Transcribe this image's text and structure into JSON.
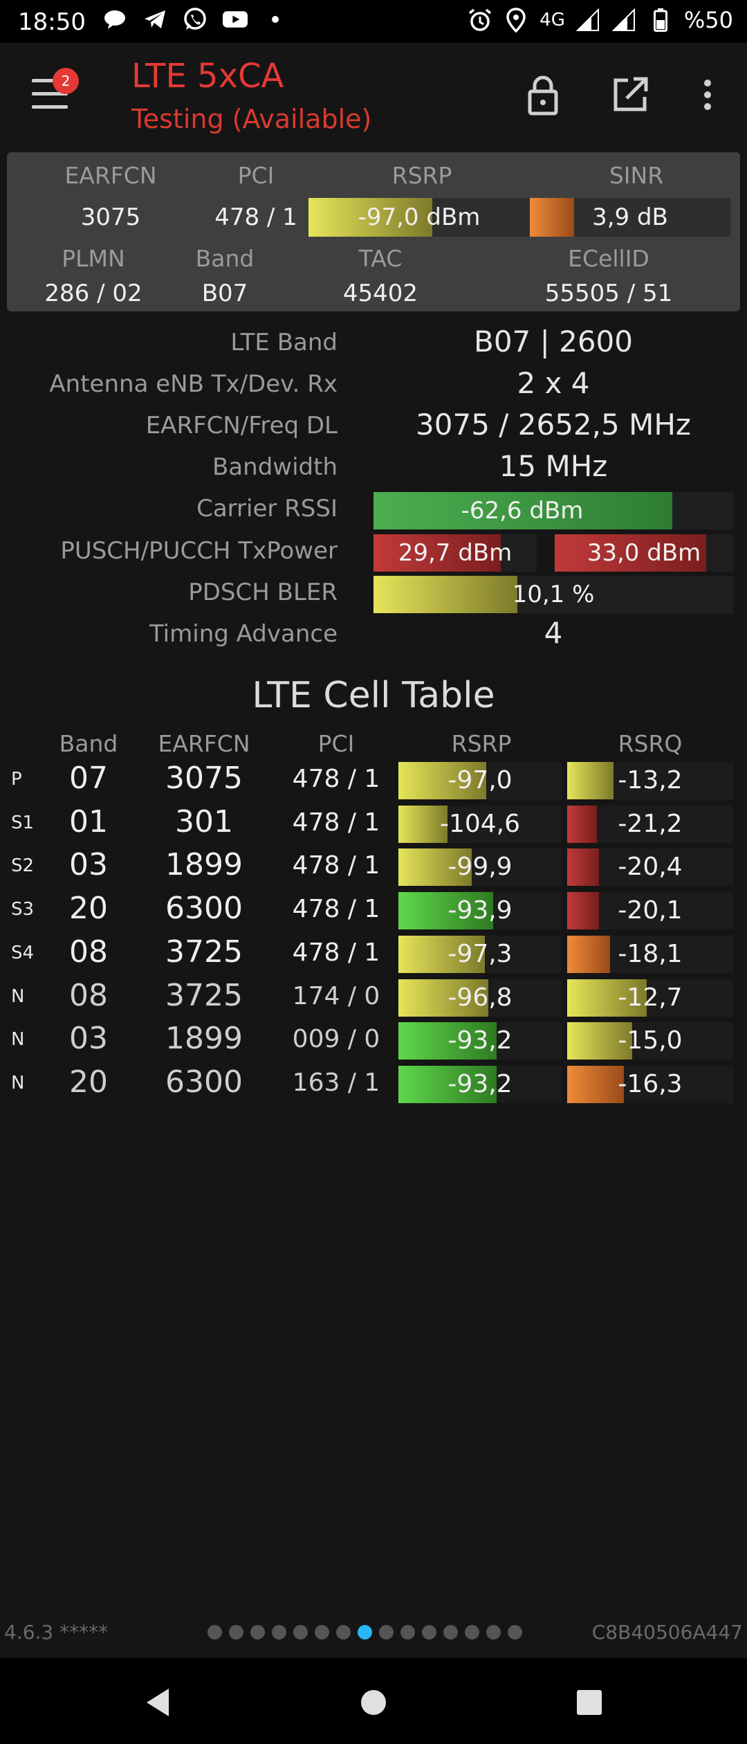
{
  "status_bar": {
    "time": "18:50",
    "left_icons": [
      "chat-bubble-icon",
      "telegram-icon",
      "whatsapp-icon",
      "youtube-icon",
      "dot-icon"
    ],
    "network": "4G",
    "battery": "%50"
  },
  "toolbar": {
    "notification_count": "2",
    "title": "LTE 5xCA",
    "subtitle": "Testing (Available)"
  },
  "panel": {
    "headers": {
      "earfcn": "EARFCN",
      "pci": "PCI",
      "rsrp": "RSRP",
      "sinr": "SINR",
      "plmn": "PLMN",
      "band": "Band",
      "tac": "TAC",
      "ecellid": "ECellID"
    },
    "earfcn": "3075",
    "pci": "478 / 1",
    "rsrp": "-97,0 dBm",
    "rsrp_level": 0.56,
    "sinr": "3,9 dB",
    "sinr_level": 0.22,
    "plmn": "286 / 02",
    "band": "B07",
    "tac": "45402",
    "ecellid": "55505 / 51"
  },
  "details": {
    "lte_band_label": "LTE Band",
    "lte_band": "B07 | 2600",
    "antenna_label": "Antenna eNB Tx/Dev. Rx",
    "antenna": "2 x 4",
    "earfcn_freq_label": "EARFCN/Freq DL",
    "earfcn_freq": "3075 / 2652,5 MHz",
    "bandwidth_label": "Bandwidth",
    "bandwidth": "15 MHz",
    "carrier_rssi_label": "Carrier RSSI",
    "carrier_rssi": "-62,6 dBm",
    "carrier_rssi_level": 0.83,
    "txpower_label": "PUSCH/PUCCH TxPower",
    "pusch": "29,7 dBm",
    "pusch_level": 0.78,
    "pucch": "33,0 dBm",
    "pucch_level": 0.85,
    "bler_label": "PDSCH BLER",
    "bler": "10,1 %",
    "bler_level": 0.4,
    "timing_advance_label": "Timing Advance",
    "timing_advance": "4"
  },
  "cell_table": {
    "title": "LTE Cell Table",
    "headers": {
      "band": "Band",
      "earfcn": "EARFCN",
      "pci": "PCI",
      "rsrp": "RSRP",
      "rsrq": "RSRQ"
    },
    "rows": [
      {
        "type": "P",
        "band": "07",
        "earfcn": "3075",
        "pci": "478 / 1",
        "rsrp": "-97,0",
        "rsrp_level": 0.54,
        "rsrp_color": "yellow",
        "rsrq": "-13,2",
        "rsrq_level": 0.28,
        "rsrq_color": "yellow"
      },
      {
        "type": "S1",
        "band": "01",
        "earfcn": "301",
        "pci": "478 / 1",
        "rsrp": "-104,6",
        "rsrp_level": 0.3,
        "rsrp_color": "yellow",
        "rsrq": "-21,2",
        "rsrq_level": 0.18,
        "rsrq_color": "red"
      },
      {
        "type": "S2",
        "band": "03",
        "earfcn": "1899",
        "pci": "478 / 1",
        "rsrp": "-99,9",
        "rsrp_level": 0.45,
        "rsrp_color": "yellow",
        "rsrq": "-20,4",
        "rsrq_level": 0.19,
        "rsrq_color": "red"
      },
      {
        "type": "S3",
        "band": "20",
        "earfcn": "6300",
        "pci": "478 / 1",
        "rsrp": "-93,9",
        "rsrp_level": 0.58,
        "rsrp_color": "green",
        "rsrq": "-20,1",
        "rsrq_level": 0.19,
        "rsrq_color": "red"
      },
      {
        "type": "S4",
        "band": "08",
        "earfcn": "3725",
        "pci": "478 / 1",
        "rsrp": "-97,3",
        "rsrp_level": 0.53,
        "rsrp_color": "yellow",
        "rsrq": "-18,1",
        "rsrq_level": 0.26,
        "rsrq_color": "orange"
      },
      {
        "type": "N",
        "band": "08",
        "earfcn": "3725",
        "pci": "174 / 0",
        "rsrp": "-96,8",
        "rsrp_level": 0.55,
        "rsrp_color": "yellow",
        "rsrq": "-12,7",
        "rsrq_level": 0.48,
        "rsrq_color": "yellow"
      },
      {
        "type": "N",
        "band": "03",
        "earfcn": "1899",
        "pci": "009 / 0",
        "rsrp": "-93,2",
        "rsrp_level": 0.6,
        "rsrp_color": "green",
        "rsrq": "-15,0",
        "rsrq_level": 0.39,
        "rsrq_color": "yellow"
      },
      {
        "type": "N",
        "band": "20",
        "earfcn": "6300",
        "pci": "163 / 1",
        "rsrp": "-93,2",
        "rsrp_level": 0.6,
        "rsrp_color": "green",
        "rsrq": "-16,3",
        "rsrq_level": 0.34,
        "rsrq_color": "orange"
      }
    ]
  },
  "footer": {
    "version": "4.6.3 *****",
    "device_id": "C8B40506A447",
    "page_count": 15,
    "active_page": 7
  },
  "colors": {
    "accent_red": "#e53935",
    "yellow": "linear-gradient(90deg,#e6e55a,#7d7a2a)",
    "green": "linear-gradient(90deg,#5fd84a,#2f7a22)",
    "green_dark": "linear-gradient(90deg,#4caf50,#2e7d32)",
    "red": "linear-gradient(90deg,#c13a3a,#7a1e1e)",
    "orange": "linear-gradient(90deg,#f08c3a,#9a4a1a)",
    "page_dot_active": "#29b6f6"
  }
}
